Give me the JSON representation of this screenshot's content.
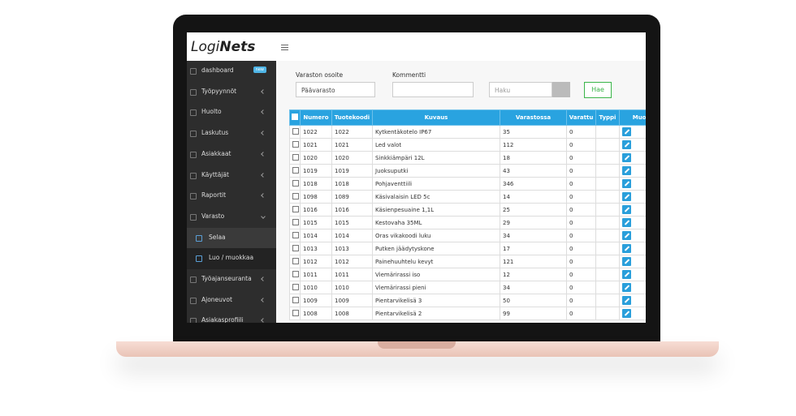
{
  "header": {
    "logo": {
      "light": "Logi",
      "bold": "Nets"
    }
  },
  "sidebar": {
    "items": [
      {
        "label": "dashboard",
        "badge": "new"
      },
      {
        "label": "Työpyynnöt"
      },
      {
        "label": "Huolto"
      },
      {
        "label": "Laskutus"
      },
      {
        "label": "Asiakkaat"
      },
      {
        "label": "Käyttäjät"
      },
      {
        "label": "Raportit"
      },
      {
        "label": "Varasto",
        "open": true
      },
      {
        "label": "Selaa",
        "sub": true,
        "active": true
      },
      {
        "label": "Luo / muokkaa",
        "sub": true
      },
      {
        "label": "Työajanseuranta"
      },
      {
        "label": "Ajoneuvot"
      },
      {
        "label": "Asiakasprofiili"
      }
    ]
  },
  "form": {
    "warehouse_label": "Varaston osoite",
    "warehouse_value": "Päävarasto",
    "comment_label": "Kommentti",
    "search_placeholder": "Haku",
    "search_button": "Hae"
  },
  "table": {
    "columns": [
      "Numero",
      "Tuotekoodi",
      "Kuvaus",
      "Varastossa",
      "Varattu",
      "Typpi",
      "Muokkaa"
    ],
    "rows": [
      [
        "1022",
        "1022",
        "Kytkentäkotelo IP67",
        "35",
        "0"
      ],
      [
        "1021",
        "1021",
        "Led valot",
        "112",
        "0"
      ],
      [
        "1020",
        "1020",
        "Sinkkiämpäri 12L",
        "18",
        "0"
      ],
      [
        "1019",
        "1019",
        "Juoksuputki",
        "43",
        "0"
      ],
      [
        "1018",
        "1018",
        "Pohjaventtiili",
        "346",
        "0"
      ],
      [
        "1098",
        "1089",
        "Käsivalaisin LED 5c",
        "14",
        "0"
      ],
      [
        "1016",
        "1016",
        "Käsienpesuaine 1,1L",
        "25",
        "0"
      ],
      [
        "1015",
        "1015",
        "Kestovaha 35ML",
        "29",
        "0"
      ],
      [
        "1014",
        "1014",
        "Oras vikakoodi luku",
        "34",
        "0"
      ],
      [
        "1013",
        "1013",
        "Putken jäädytyskone",
        "17",
        "0"
      ],
      [
        "1012",
        "1012",
        "Painehuuhtelu kevyt",
        "121",
        "0"
      ],
      [
        "1011",
        "1011",
        "Viemärirassi iso",
        "12",
        "0"
      ],
      [
        "1010",
        "1010",
        "Viemärirassi pieni",
        "34",
        "0"
      ],
      [
        "1009",
        "1009",
        "Pientarvikelisä 3",
        "50",
        "0"
      ],
      [
        "1008",
        "1008",
        "Pientarvikelisä 2",
        "99",
        "0"
      ]
    ]
  }
}
